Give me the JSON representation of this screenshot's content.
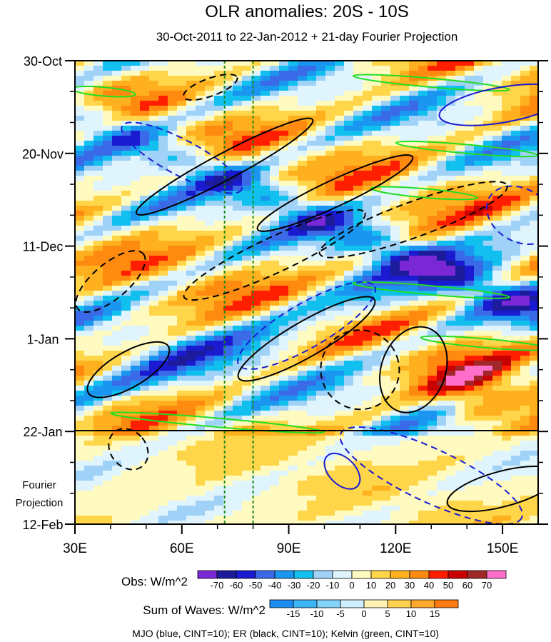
{
  "chart_data": {
    "type": "heatmap",
    "title": "OLR anomalies: 20S - 10S",
    "subtitle": "30-Oct-2011 to 22-Jan-2012 + 21-day Fourier Projection",
    "x_ticks": [
      {
        "value": 30,
        "label": "30E"
      },
      {
        "value": 60,
        "label": "60E"
      },
      {
        "value": 90,
        "label": "90E"
      },
      {
        "value": 120,
        "label": "120E"
      },
      {
        "value": 150,
        "label": "150E"
      }
    ],
    "x_range": [
      30,
      160
    ],
    "y_range_days": [
      0,
      105
    ],
    "y_ticks": [
      {
        "day": 0,
        "label": "30-Oct"
      },
      {
        "day": 21,
        "label": "20-Nov"
      },
      {
        "day": 42,
        "label": "11-Dec"
      },
      {
        "day": 63,
        "label": "1-Jan"
      },
      {
        "day": 84,
        "label": "22-Jan"
      },
      {
        "day": 105,
        "label": "12-Feb"
      }
    ],
    "projection_start_day": 84,
    "projection_label": [
      "Fourier",
      "Projection"
    ],
    "reference_lines_lon": [
      72,
      80
    ],
    "obs_legend": {
      "title": "Obs: W/m^2",
      "levels": [
        "-70",
        "-60",
        "-50",
        "-40",
        "-30",
        "-20",
        "-10",
        "0",
        "10",
        "20",
        "30",
        "40",
        "50",
        "60",
        "70"
      ],
      "colors": [
        "#7a28d6",
        "#1c1c9a",
        "#1a1ad0",
        "#3a6ae8",
        "#1a96f0",
        "#12c0f0",
        "#a0d2f8",
        "#dff4fc",
        "#fffbc0",
        "#ffd64a",
        "#ffb01e",
        "#ff8a10",
        "#ff1e00",
        "#c80000",
        "#a02828",
        "#ff6ec8"
      ]
    },
    "waves_legend": {
      "title": "Sum of Waves: W/m^2",
      "levels": [
        "-15",
        "-10",
        "-5",
        "0",
        "5",
        "10",
        "15"
      ],
      "colors": [
        "#1e8cf0",
        "#3cb4f8",
        "#82d2fc",
        "#cdeefc",
        "#fff4b4",
        "#ffd050",
        "#ffa82a",
        "#ff7a10"
      ]
    },
    "contours_note": "MJO (blue, CINT=10); ER (black, CINT=10); Kelvin (green, CINT=10)",
    "mjo_contours": [
      {
        "lon": 60,
        "day": 22,
        "rx": 19,
        "ry": 4,
        "rot": 28,
        "sign": "neg"
      },
      {
        "lon": 95,
        "day": 60,
        "rx": 22,
        "ry": 5,
        "rot": -30,
        "sign": "neg"
      },
      {
        "lon": 155,
        "day": 35,
        "rx": 10,
        "ry": 6,
        "rot": 30,
        "sign": "neg"
      },
      {
        "lon": 130,
        "day": 94,
        "rx": 28,
        "ry": 6,
        "rot": 25,
        "sign": "neg"
      },
      {
        "lon": 105,
        "day": 93,
        "rx": 6,
        "ry": 3,
        "rot": 45,
        "sign": "pos"
      },
      {
        "lon": 150,
        "day": 10,
        "rx": 18,
        "ry": 4,
        "rot": -10,
        "sign": "pos"
      }
    ],
    "er_contours": [
      {
        "lon": 72,
        "day": 24,
        "rx": 28,
        "ry": 3,
        "rot": -28,
        "sign": "pos"
      },
      {
        "lon": 95,
        "day": 63,
        "rx": 22,
        "ry": 4,
        "rot": -30,
        "sign": "pos"
      },
      {
        "lon": 45,
        "day": 70,
        "rx": 13,
        "ry": 4,
        "rot": -30,
        "sign": "pos"
      },
      {
        "lon": 103,
        "day": 30,
        "rx": 24,
        "ry": 3,
        "rot": -25,
        "sign": "pos"
      },
      {
        "lon": 125,
        "day": 70,
        "rx": 9,
        "ry": 10,
        "rot": 20,
        "sign": "pos"
      },
      {
        "lon": 150,
        "day": 97,
        "rx": 16,
        "ry": 4,
        "rot": -15,
        "sign": "pos"
      },
      {
        "lon": 40,
        "day": 50,
        "rx": 12,
        "ry": 4,
        "rot": -40,
        "sign": "neg"
      },
      {
        "lon": 86,
        "day": 44,
        "rx": 28,
        "ry": 4,
        "rot": -25,
        "sign": "neg"
      },
      {
        "lon": 125,
        "day": 36,
        "rx": 28,
        "ry": 4,
        "rot": -20,
        "sign": "neg"
      },
      {
        "lon": 68,
        "day": 6,
        "rx": 8,
        "ry": 2,
        "rot": -20,
        "sign": "neg"
      },
      {
        "lon": 110,
        "day": 70,
        "rx": 11,
        "ry": 9,
        "rot": -20,
        "sign": "neg"
      },
      {
        "lon": 45,
        "day": 88,
        "rx": 5,
        "ry": 5,
        "rot": -40,
        "sign": "neg"
      }
    ],
    "kelvin_contours": [
      {
        "lon": 38,
        "day": 7,
        "rx": 9,
        "ry": 1,
        "rot": 5
      },
      {
        "lon": 130,
        "day": 5,
        "rx": 22,
        "ry": 1,
        "rot": 5
      },
      {
        "lon": 140,
        "day": 20,
        "rx": 20,
        "ry": 1,
        "rot": 5
      },
      {
        "lon": 128,
        "day": 30,
        "rx": 15,
        "ry": 1,
        "rot": 5
      },
      {
        "lon": 70,
        "day": 82,
        "rx": 30,
        "ry": 1,
        "rot": 5
      },
      {
        "lon": 145,
        "day": 64,
        "rx": 18,
        "ry": 1,
        "rot": 5
      },
      {
        "lon": 130,
        "day": 52,
        "rx": 22,
        "ry": 1,
        "rot": 5
      }
    ]
  }
}
